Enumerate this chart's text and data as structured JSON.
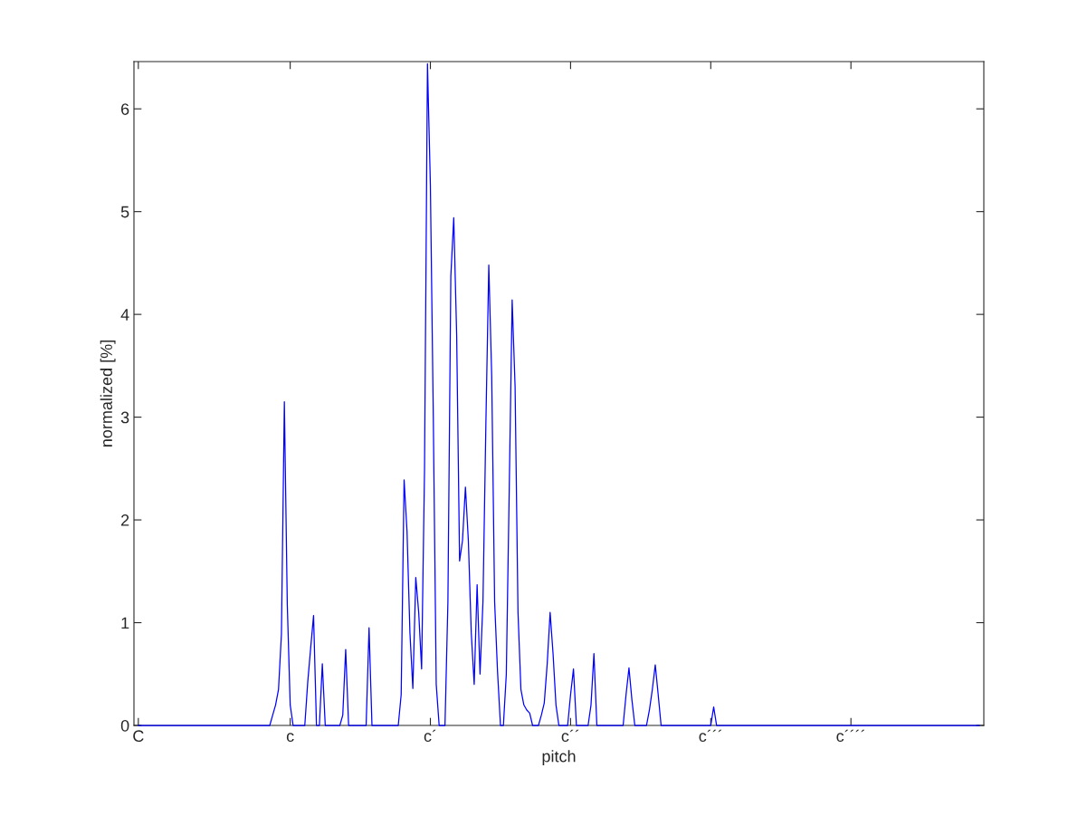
{
  "chart_data": {
    "type": "line",
    "xlabel": "pitch",
    "ylabel": "normalized [%]",
    "categories": [
      "C",
      null,
      null,
      null,
      null,
      null,
      null,
      null,
      null,
      null,
      null,
      null,
      null,
      null,
      null,
      null,
      null,
      null,
      null,
      null,
      null,
      null,
      null,
      null,
      null,
      null,
      null,
      null,
      null,
      null,
      null,
      null,
      null,
      null,
      null,
      null,
      null,
      null,
      null,
      null,
      null,
      null,
      null,
      null,
      null,
      null,
      null,
      null,
      null,
      null,
      null,
      null,
      "c",
      null,
      null,
      null,
      null,
      null,
      null,
      null,
      null,
      null,
      null,
      null,
      null,
      null,
      null,
      null,
      null,
      null,
      null,
      null,
      null,
      null,
      null,
      null,
      null,
      null,
      null,
      null,
      null,
      null,
      null,
      null,
      null,
      null,
      null,
      null,
      null,
      null,
      null,
      null,
      null,
      null,
      null,
      null,
      null,
      null,
      null,
      null,
      "c´",
      null,
      null,
      null,
      null,
      null,
      null,
      null,
      null,
      null,
      null,
      null,
      null,
      null,
      null,
      null,
      null,
      null,
      null,
      null,
      null,
      null,
      null,
      null,
      null,
      null,
      null,
      null,
      null,
      null,
      null,
      null,
      null,
      null,
      null,
      null,
      null,
      null,
      null,
      null,
      null,
      null,
      null,
      null,
      null,
      null,
      null,
      null,
      "c´´",
      null,
      null,
      null,
      null,
      null,
      null,
      null,
      null,
      null,
      null,
      null,
      null,
      null,
      null,
      null,
      null,
      null,
      null,
      null,
      null,
      null,
      null,
      null,
      null,
      null,
      null,
      null,
      null,
      null,
      null,
      null,
      null,
      null,
      null,
      null,
      null,
      null,
      null,
      null,
      null,
      null,
      null,
      null,
      null,
      null,
      null,
      null,
      "c´´´",
      null,
      null,
      null,
      null,
      null,
      null,
      null,
      null,
      null,
      null,
      null,
      null,
      null,
      null,
      null,
      null,
      null,
      null,
      null,
      null,
      null,
      null,
      null,
      null,
      null,
      null,
      null,
      null,
      null,
      null,
      null,
      null,
      null,
      null,
      null,
      null,
      null,
      null,
      null,
      null,
      null,
      null,
      null,
      null,
      null,
      null,
      null,
      "c´´´´",
      null,
      null,
      null,
      null,
      null,
      null,
      null,
      null,
      null,
      null,
      null,
      null,
      null,
      null,
      null,
      null,
      null,
      null,
      null,
      null,
      null,
      null,
      null,
      null,
      null,
      null,
      null,
      null,
      null,
      null,
      null,
      null,
      null,
      null,
      null,
      null,
      null,
      null,
      null,
      null,
      null,
      null,
      null,
      null
    ],
    "series": [
      {
        "color": "#0000ff",
        "values": [
          0,
          0,
          0,
          0,
          0,
          0,
          0,
          0,
          0,
          0,
          0,
          0,
          0,
          0,
          0,
          0,
          0,
          0,
          0,
          0,
          0,
          0,
          0,
          0,
          0,
          0,
          0,
          0,
          0,
          0,
          0,
          0,
          0,
          0,
          0,
          0,
          0,
          0,
          0,
          0,
          0,
          0,
          0,
          0,
          0,
          0,
          0.1,
          0.2,
          0.35,
          0.89,
          3.15,
          1.18,
          0.2,
          0,
          0,
          0,
          0,
          0,
          0.42,
          0.75,
          1.07,
          0,
          0,
          0.6,
          0,
          0,
          0,
          0,
          0,
          0,
          0.1,
          0.74,
          0,
          0,
          0,
          0,
          0,
          0,
          0,
          0.95,
          0,
          0,
          0,
          0,
          0,
          0,
          0,
          0,
          0,
          0,
          0.3,
          2.39,
          1.89,
          0.9,
          0.36,
          1.44,
          1.1,
          0.55,
          2.5,
          6.44,
          5.26,
          3,
          0.4,
          0,
          0,
          0,
          1.2,
          4.37,
          4.94,
          3.8,
          1.6,
          1.8,
          2.32,
          1.8,
          0.9,
          0.4,
          1.37,
          0.5,
          1.2,
          2.93,
          4.48,
          3.4,
          1.2,
          0.52,
          0,
          0,
          0.5,
          2.3,
          4.14,
          3.3,
          1.1,
          0.35,
          0.2,
          0.15,
          0.12,
          0,
          0,
          0,
          0.1,
          0.22,
          0.6,
          1.1,
          0.7,
          0.2,
          0,
          0,
          0,
          0,
          0.3,
          0.55,
          0,
          0,
          0,
          0,
          0,
          0.2,
          0.7,
          0,
          0,
          0,
          0,
          0,
          0,
          0,
          0,
          0,
          0,
          0.3,
          0.56,
          0.25,
          0,
          0,
          0,
          0,
          0,
          0.15,
          0.35,
          0.59,
          0.3,
          0,
          0,
          0,
          0,
          0,
          0,
          0,
          0,
          0,
          0,
          0,
          0,
          0,
          0,
          0,
          0,
          0,
          0,
          0.18,
          0,
          0,
          0,
          0,
          0,
          0,
          0,
          0,
          0,
          0,
          0,
          0,
          0,
          0,
          0,
          0,
          0,
          0,
          0,
          0,
          0,
          0,
          0,
          0,
          0,
          0,
          0,
          0,
          0,
          0,
          0,
          0,
          0,
          0,
          0,
          0,
          0,
          0,
          0,
          0,
          0,
          0,
          0,
          0,
          0,
          0,
          0,
          0,
          0,
          0,
          0,
          0,
          0,
          0,
          0,
          0,
          0,
          0,
          0,
          0,
          0,
          0,
          0,
          0,
          0,
          0,
          0,
          0,
          0,
          0,
          0,
          0,
          0,
          0,
          0,
          0,
          0,
          0,
          0,
          0,
          0,
          0,
          0,
          0,
          0,
          0,
          0,
          0,
          0,
          0,
          0
        ]
      }
    ],
    "ylim": [
      0,
      6.46
    ],
    "yticks": [
      0,
      1,
      2,
      3,
      4,
      5,
      6
    ]
  }
}
